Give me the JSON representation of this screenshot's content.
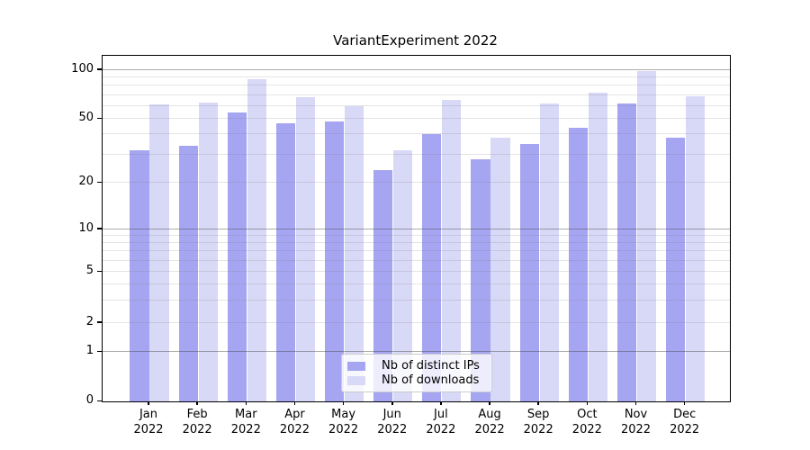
{
  "title": "VariantExperiment 2022",
  "chart_data": {
    "type": "bar",
    "title": "VariantExperiment 2022",
    "categories": [
      "Jan 2022",
      "Feb 2022",
      "Mar 2022",
      "Apr 2022",
      "May 2022",
      "Jun 2022",
      "Jul 2022",
      "Aug 2022",
      "Sep 2022",
      "Oct 2022",
      "Nov 2022",
      "Dec 2022"
    ],
    "month_labels": [
      "Jan",
      "Feb",
      "Mar",
      "Apr",
      "May",
      "Jun",
      "Jul",
      "Aug",
      "Sep",
      "Oct",
      "Nov",
      "Dec"
    ],
    "year_label": "2022",
    "series": [
      {
        "name": "Nb of distinct IPs",
        "color": "#a5a5f2",
        "values": [
          32,
          34,
          55,
          47,
          48,
          24,
          40,
          28,
          35,
          44,
          62,
          38
        ]
      },
      {
        "name": "Nb of downloads",
        "color": "#d8d8f7",
        "values": [
          61,
          63,
          88,
          68,
          60,
          32,
          65,
          38,
          62,
          72,
          98,
          69
        ]
      }
    ],
    "xlabel": "",
    "ylabel": "",
    "yscale": "symlog",
    "ylim": [
      0,
      127
    ],
    "ytick_values": [
      100,
      50,
      20,
      10,
      5,
      2,
      1,
      0
    ],
    "ytick_labels": [
      "100",
      "50",
      "20",
      "10",
      "5",
      "2",
      "1",
      "0"
    ],
    "minor_gridline_values": [
      3,
      4,
      6,
      7,
      8,
      9,
      30,
      40,
      60,
      70,
      80,
      90
    ],
    "major_gridline_values": [
      1,
      10,
      100
    ],
    "grid": "on",
    "legend_position": "lower center inside plot"
  },
  "legend": {
    "items": [
      {
        "label": "Nb of distinct IPs"
      },
      {
        "label": "Nb of downloads"
      }
    ]
  }
}
